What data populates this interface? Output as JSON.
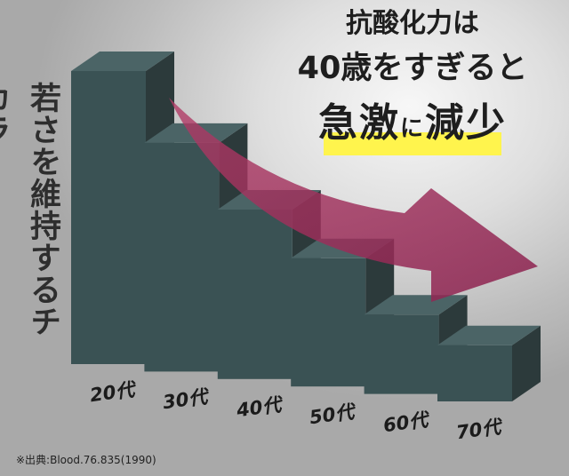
{
  "headline": {
    "line1": "抗酸化力は",
    "line2": "40歳をすぎると",
    "line3_a": "急激",
    "line3_b": "に",
    "line3_c": "減少"
  },
  "source": "※出典:Blood.76.835(1990)",
  "colors": {
    "bar_light": "#3a5254",
    "bar_dark": "#2c3a3b",
    "arrow": "#a0305a",
    "highlight": "#fff44d"
  },
  "chart_data": {
    "type": "bar",
    "ylabel": "若さを維持するチカラ",
    "categories": [
      "20代",
      "30代",
      "40代",
      "50代",
      "60代",
      "70代"
    ],
    "values": [
      100,
      75,
      52,
      36,
      17,
      8
    ],
    "grid": false
  }
}
